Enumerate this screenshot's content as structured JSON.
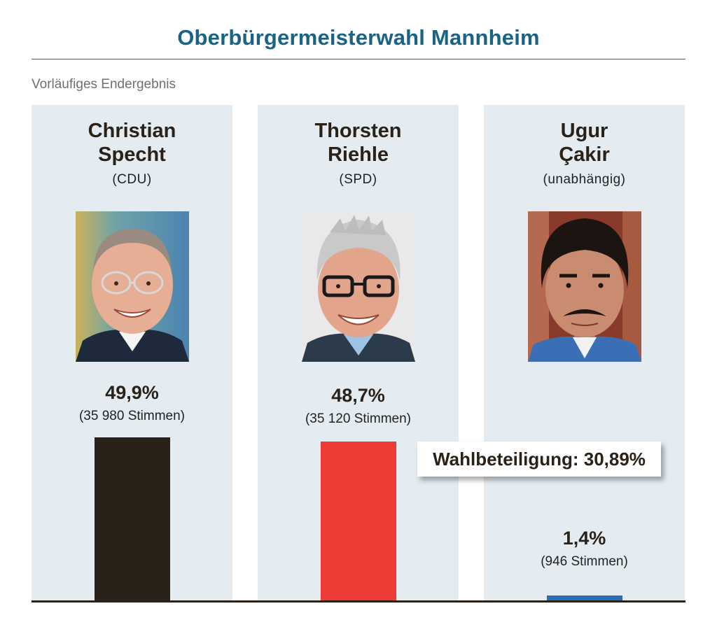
{
  "header": {
    "title": "Oberbürgermeisterwahl Mannheim",
    "subtitle": "Vorläufiges Endergebnis"
  },
  "colors": {
    "title": "#1a6384",
    "panel_bg": "#e4ecf1",
    "subtitle": "#6f6f6f"
  },
  "chart_data": {
    "type": "bar",
    "categories": [
      "Christian Specht",
      "Thorsten Riehle",
      "Ugur Çakir"
    ],
    "values": [
      49.9,
      48.7,
      1.4
    ],
    "unit": "%",
    "ylim": [
      0,
      100
    ],
    "grid": false,
    "candidates": [
      {
        "first": "Christian",
        "last": "Specht",
        "party": "(CDU)",
        "percent_label": "49,9%",
        "votes_label": "(35 980 Stimmen)",
        "value": 49.9,
        "color": "#2a2119",
        "photo_icon": "candidate-photo-specht"
      },
      {
        "first": "Thorsten",
        "last": "Riehle",
        "party": "(SPD)",
        "percent_label": "48,7%",
        "votes_label": "(35 120 Stimmen)",
        "value": 48.7,
        "color": "#ef3b36",
        "photo_icon": "candidate-photo-riehle"
      },
      {
        "first": "Ugur",
        "last": "Çakir",
        "party": "(unabhängig)",
        "percent_label": "1,4%",
        "votes_label": "(946 Stimmen)",
        "value": 1.4,
        "color": "#2a6db3",
        "photo_icon": "candidate-photo-cakir"
      }
    ],
    "annotation": "Wahlbeteiligung: 30,89%"
  }
}
